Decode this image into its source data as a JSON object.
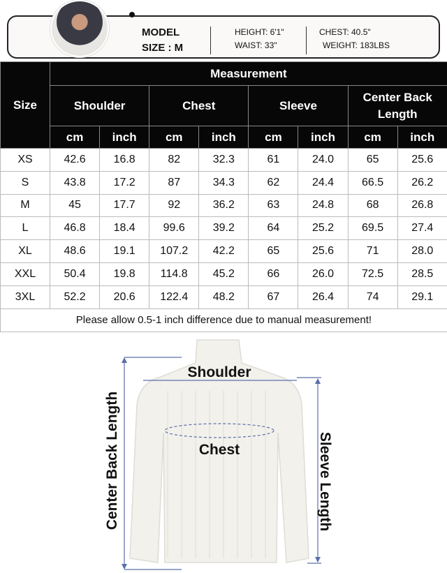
{
  "model": {
    "label": "MODEL",
    "size": "SIZE : M",
    "height": "HEIGHT: 6'1\"",
    "waist": "WAIST: 33\"",
    "chest": "CHEST: 40.5\"",
    "weight": "WEIGHT: 183LBS"
  },
  "table": {
    "size_header": "Size",
    "group_header": "Measurement",
    "columns": [
      "Shoulder",
      "Chest",
      "Sleeve",
      "Center Back Length"
    ],
    "units": [
      "cm",
      "inch"
    ],
    "rows": [
      [
        "XS",
        "42.6",
        "16.8",
        "82",
        "32.3",
        "61",
        "24.0",
        "65",
        "25.6"
      ],
      [
        "S",
        "43.8",
        "17.2",
        "87",
        "34.3",
        "62",
        "24.4",
        "66.5",
        "26.2"
      ],
      [
        "M",
        "45",
        "17.7",
        "92",
        "36.2",
        "63",
        "24.8",
        "68",
        "26.8"
      ],
      [
        "L",
        "46.8",
        "18.4",
        "99.6",
        "39.2",
        "64",
        "25.2",
        "69.5",
        "27.4"
      ],
      [
        "XL",
        "48.6",
        "19.1",
        "107.2",
        "42.2",
        "65",
        "25.6",
        "71",
        "28.0"
      ],
      [
        "XXL",
        "50.4",
        "19.8",
        "114.8",
        "45.2",
        "66",
        "26.0",
        "72.5",
        "28.5"
      ],
      [
        "3XL",
        "52.2",
        "20.6",
        "122.4",
        "48.2",
        "67",
        "26.4",
        "74",
        "29.1"
      ]
    ],
    "footer": "Please allow 0.5-1 inch difference due to manual measurement!"
  },
  "diagram": {
    "shoulder": "Shoulder",
    "chest": "Chest",
    "back_length": "Center Back Length",
    "sleeve_length": "Sleeve Length",
    "line_color": "#5a6fa8",
    "garment_color": "#f2f1ec"
  }
}
